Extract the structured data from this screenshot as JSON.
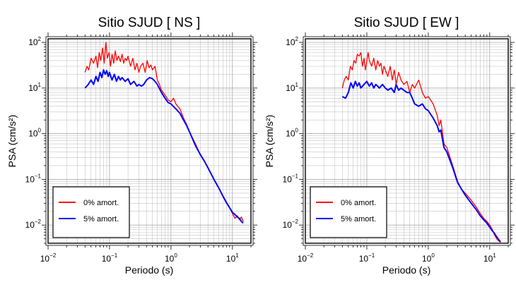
{
  "chart_data": [
    {
      "type": "line",
      "title": "Sitio SJUD [ NS ]",
      "xlabel": "Periodo (s)",
      "ylabel": "PSA (cm/s²)",
      "x_scale": "log",
      "y_scale": "log",
      "xlim": [
        0.01,
        20
      ],
      "ylim": [
        0.004,
        120
      ],
      "grid": true,
      "legend_position": "bottom-left",
      "x_ticks": [
        {
          "value": 0.01,
          "base": "10",
          "exp": "−2"
        },
        {
          "value": 0.1,
          "base": "10",
          "exp": "−1"
        },
        {
          "value": 1,
          "base": "10",
          "exp": "0"
        },
        {
          "value": 10,
          "base": "10",
          "exp": "1"
        }
      ],
      "y_ticks": [
        {
          "value": 0.01,
          "base": "10",
          "exp": "−2"
        },
        {
          "value": 0.1,
          "base": "10",
          "exp": "−1"
        },
        {
          "value": 1,
          "base": "10",
          "exp": "0"
        },
        {
          "value": 10,
          "base": "10",
          "exp": "1"
        },
        {
          "value": 100,
          "base": "10",
          "exp": "2"
        }
      ],
      "series": [
        {
          "name": "0% amort.",
          "color": "#ff0000",
          "x": [
            0.04,
            0.043,
            0.046,
            0.05,
            0.055,
            0.06,
            0.064,
            0.068,
            0.072,
            0.077,
            0.082,
            0.087,
            0.092,
            0.098,
            0.104,
            0.11,
            0.117,
            0.124,
            0.132,
            0.14,
            0.15,
            0.16,
            0.17,
            0.18,
            0.19,
            0.2,
            0.22,
            0.24,
            0.26,
            0.28,
            0.3,
            0.32,
            0.35,
            0.38,
            0.41,
            0.44,
            0.47,
            0.5,
            0.55,
            0.6,
            0.65,
            0.7,
            0.8,
            0.9,
            1.0,
            1.1,
            1.2,
            1.4,
            1.6,
            1.8,
            2.0,
            2.5,
            3.0,
            3.5,
            4.0,
            5.0,
            6.0,
            7.0,
            8.0,
            9.0,
            10,
            11,
            12,
            13,
            14,
            15
          ],
          "y": [
            22,
            30,
            25,
            45,
            35,
            50,
            28,
            60,
            40,
            75,
            35,
            100,
            45,
            60,
            30,
            55,
            35,
            65,
            40,
            50,
            38,
            55,
            35,
            45,
            40,
            50,
            30,
            45,
            25,
            35,
            22,
            30,
            35,
            22,
            40,
            28,
            32,
            25,
            30,
            15,
            12,
            9,
            7,
            5.5,
            5.0,
            6.0,
            4.5,
            3.5,
            2.2,
            1.6,
            1.1,
            0.6,
            0.35,
            0.25,
            0.18,
            0.1,
            0.065,
            0.042,
            0.03,
            0.024,
            0.018,
            0.014,
            0.016,
            0.013,
            0.015,
            0.012
          ]
        },
        {
          "name": "5% amort.",
          "color": "#0000ff",
          "x": [
            0.04,
            0.045,
            0.05,
            0.055,
            0.06,
            0.065,
            0.07,
            0.075,
            0.08,
            0.085,
            0.09,
            0.095,
            0.1,
            0.11,
            0.12,
            0.13,
            0.14,
            0.15,
            0.16,
            0.18,
            0.2,
            0.22,
            0.25,
            0.28,
            0.3,
            0.33,
            0.36,
            0.4,
            0.45,
            0.5,
            0.55,
            0.6,
            0.7,
            0.8,
            0.9,
            1.0,
            1.2,
            1.4,
            1.6,
            1.8,
            2.0,
            2.5,
            3.0,
            3.5,
            4.0,
            5.0,
            6.0,
            7.0,
            8.0,
            9.0,
            10,
            11,
            12,
            13,
            14,
            15
          ],
          "y": [
            10,
            12,
            15,
            12,
            18,
            14,
            22,
            17,
            25,
            20,
            24,
            18,
            22,
            15,
            20,
            14,
            18,
            15,
            17,
            14,
            16,
            12,
            14,
            11,
            12,
            11,
            12,
            15,
            17,
            16,
            14,
            12,
            8,
            6,
            4.8,
            4.5,
            3.5,
            2.8,
            2.0,
            1.5,
            1.1,
            0.55,
            0.35,
            0.25,
            0.18,
            0.1,
            0.065,
            0.043,
            0.031,
            0.024,
            0.019,
            0.017,
            0.015,
            0.014,
            0.012,
            0.011
          ]
        }
      ]
    },
    {
      "type": "line",
      "title": "Sitio SJUD [ EW ]",
      "xlabel": "Periodo (s)",
      "ylabel": "PSA (cm/s²)",
      "x_scale": "log",
      "y_scale": "log",
      "xlim": [
        0.01,
        20
      ],
      "ylim": [
        0.004,
        120
      ],
      "grid": true,
      "legend_position": "bottom-left",
      "x_ticks": [
        {
          "value": 0.01,
          "base": "10",
          "exp": "−2"
        },
        {
          "value": 0.1,
          "base": "10",
          "exp": "−1"
        },
        {
          "value": 1,
          "base": "10",
          "exp": "0"
        },
        {
          "value": 10,
          "base": "10",
          "exp": "1"
        }
      ],
      "y_ticks": [
        {
          "value": 0.01,
          "base": "10",
          "exp": "−2"
        },
        {
          "value": 0.1,
          "base": "10",
          "exp": "−1"
        },
        {
          "value": 1,
          "base": "10",
          "exp": "0"
        },
        {
          "value": 10,
          "base": "10",
          "exp": "1"
        },
        {
          "value": 100,
          "base": "10",
          "exp": "2"
        }
      ],
      "series": [
        {
          "name": "0% amort.",
          "color": "#ff0000",
          "x": [
            0.04,
            0.043,
            0.046,
            0.05,
            0.054,
            0.058,
            0.062,
            0.066,
            0.07,
            0.075,
            0.08,
            0.085,
            0.09,
            0.095,
            0.1,
            0.105,
            0.11,
            0.12,
            0.13,
            0.14,
            0.15,
            0.16,
            0.17,
            0.18,
            0.19,
            0.2,
            0.22,
            0.24,
            0.26,
            0.28,
            0.3,
            0.33,
            0.36,
            0.4,
            0.45,
            0.5,
            0.55,
            0.6,
            0.7,
            0.8,
            0.9,
            1.0,
            1.2,
            1.4,
            1.5,
            1.6,
            1.8,
            2.0,
            2.5,
            3.0,
            3.5,
            4.0,
            5.0,
            6.0,
            7.0,
            8.0,
            9.0,
            10,
            11,
            12,
            13,
            14,
            15
          ],
          "y": [
            10,
            15,
            18,
            15,
            30,
            25,
            40,
            35,
            55,
            50,
            60,
            30,
            45,
            25,
            38,
            60,
            40,
            30,
            45,
            25,
            40,
            30,
            35,
            20,
            30,
            25,
            18,
            30,
            15,
            25,
            12,
            22,
            15,
            12,
            14,
            8,
            12,
            10,
            15,
            8,
            6,
            6.5,
            4.5,
            2.5,
            1.5,
            2.0,
            0.6,
            0.5,
            0.2,
            0.09,
            0.06,
            0.05,
            0.035,
            0.025,
            0.018,
            0.014,
            0.012,
            0.01,
            0.008,
            0.006,
            0.005,
            0.0045,
            0.0042
          ]
        },
        {
          "name": "5% amort.",
          "color": "#0000ff",
          "x": [
            0.04,
            0.045,
            0.05,
            0.055,
            0.06,
            0.065,
            0.07,
            0.075,
            0.08,
            0.09,
            0.1,
            0.11,
            0.12,
            0.13,
            0.14,
            0.15,
            0.16,
            0.18,
            0.2,
            0.22,
            0.25,
            0.28,
            0.3,
            0.33,
            0.36,
            0.4,
            0.45,
            0.5,
            0.55,
            0.6,
            0.7,
            0.8,
            0.9,
            1.0,
            1.2,
            1.4,
            1.5,
            1.6,
            1.8,
            2.0,
            2.5,
            3.0,
            3.5,
            4.0,
            5.0,
            6.0,
            7.0,
            8.0,
            9.0,
            10,
            11,
            12,
            13,
            14,
            15
          ],
          "y": [
            6.5,
            6,
            8,
            13,
            10,
            14,
            11,
            13,
            10,
            12,
            14,
            11,
            13,
            10,
            12,
            11,
            10,
            12,
            10,
            9,
            10,
            8,
            12,
            9,
            10,
            9,
            8,
            8,
            6,
            4.5,
            4,
            4.5,
            3.5,
            3.2,
            2.2,
            1.5,
            1.1,
            1.2,
            0.5,
            0.4,
            0.18,
            0.085,
            0.06,
            0.045,
            0.03,
            0.022,
            0.016,
            0.013,
            0.011,
            0.009,
            0.0075,
            0.0065,
            0.0055,
            0.0048,
            0.0043
          ]
        }
      ]
    }
  ]
}
